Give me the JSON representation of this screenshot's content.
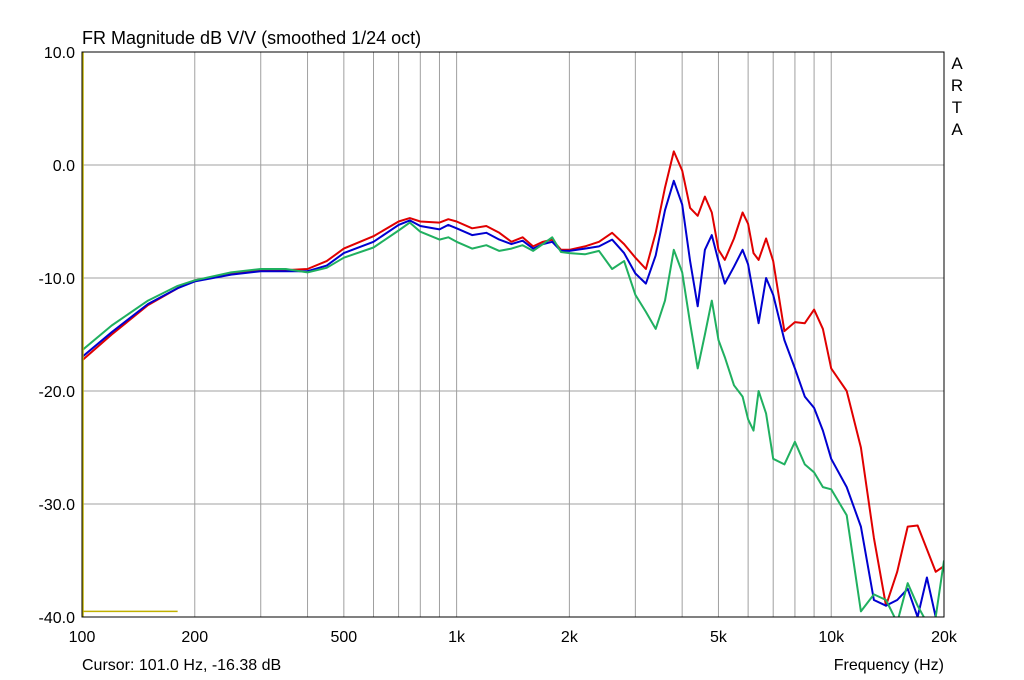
{
  "chart_data": {
    "type": "line",
    "title": "FR Magnitude dB V/V (smoothed 1/24 oct)",
    "xlabel": "Frequency (Hz)",
    "ylabel": "",
    "xscale": "log",
    "xlim": [
      100,
      20000
    ],
    "ylim": [
      -40,
      10
    ],
    "grid": true,
    "brand_letters": [
      "A",
      "R",
      "T",
      "A"
    ],
    "cursor_text": "Cursor: 101.0 Hz, -16.38 dB",
    "cursor_marker": {
      "x_start": 100,
      "x_end": 180,
      "y": -39.5
    },
    "y_ticks": [
      {
        "value": 10,
        "label": "10.0"
      },
      {
        "value": 0,
        "label": "0.0"
      },
      {
        "value": -10,
        "label": "-10.0"
      },
      {
        "value": -20,
        "label": "-20.0"
      },
      {
        "value": -30,
        "label": "-30.0"
      },
      {
        "value": -40,
        "label": "-40.0"
      }
    ],
    "x_ticks": [
      {
        "value": 100,
        "label": "100"
      },
      {
        "value": 200,
        "label": "200"
      },
      {
        "value": 500,
        "label": "500"
      },
      {
        "value": 1000,
        "label": "1k"
      },
      {
        "value": 2000,
        "label": "2k"
      },
      {
        "value": 5000,
        "label": "5k"
      },
      {
        "value": 10000,
        "label": "10k"
      },
      {
        "value": 20000,
        "label": "20k"
      }
    ],
    "x_minor_grid": [
      300,
      400,
      600,
      700,
      800,
      900,
      3000,
      4000,
      6000,
      7000,
      8000,
      9000
    ],
    "colors": {
      "red": "#e00000",
      "blue": "#0000d0",
      "green": "#20b060",
      "cursor": "#c0b000",
      "grid": "#a0a0a0"
    },
    "series": [
      {
        "color": "#e00000",
        "points": [
          [
            100,
            -17.3
          ],
          [
            120,
            -15.0
          ],
          [
            150,
            -12.4
          ],
          [
            180,
            -10.9
          ],
          [
            200,
            -10.2
          ],
          [
            250,
            -9.6
          ],
          [
            300,
            -9.3
          ],
          [
            350,
            -9.3
          ],
          [
            400,
            -9.2
          ],
          [
            450,
            -8.5
          ],
          [
            500,
            -7.4
          ],
          [
            600,
            -6.3
          ],
          [
            700,
            -5.0
          ],
          [
            750,
            -4.7
          ],
          [
            800,
            -5.0
          ],
          [
            900,
            -5.1
          ],
          [
            950,
            -4.8
          ],
          [
            1000,
            -5.0
          ],
          [
            1100,
            -5.6
          ],
          [
            1200,
            -5.4
          ],
          [
            1300,
            -6.0
          ],
          [
            1400,
            -6.8
          ],
          [
            1500,
            -6.4
          ],
          [
            1600,
            -7.2
          ],
          [
            1700,
            -6.8
          ],
          [
            1800,
            -6.6
          ],
          [
            1900,
            -7.5
          ],
          [
            2000,
            -7.5
          ],
          [
            2200,
            -7.2
          ],
          [
            2400,
            -6.8
          ],
          [
            2600,
            -6.0
          ],
          [
            2800,
            -7.0
          ],
          [
            3000,
            -8.2
          ],
          [
            3200,
            -9.2
          ],
          [
            3400,
            -6.0
          ],
          [
            3600,
            -2.0
          ],
          [
            3800,
            1.2
          ],
          [
            4000,
            -0.5
          ],
          [
            4200,
            -3.8
          ],
          [
            4400,
            -4.5
          ],
          [
            4600,
            -2.8
          ],
          [
            4800,
            -4.2
          ],
          [
            5000,
            -7.5
          ],
          [
            5200,
            -8.4
          ],
          [
            5500,
            -6.5
          ],
          [
            5800,
            -4.2
          ],
          [
            6000,
            -5.2
          ],
          [
            6200,
            -7.8
          ],
          [
            6400,
            -8.4
          ],
          [
            6700,
            -6.5
          ],
          [
            7000,
            -8.5
          ],
          [
            7500,
            -14.7
          ],
          [
            8000,
            -13.9
          ],
          [
            8500,
            -14.0
          ],
          [
            9000,
            -12.8
          ],
          [
            9500,
            -14.5
          ],
          [
            10000,
            -18.0
          ],
          [
            11000,
            -20.0
          ],
          [
            12000,
            -25.0
          ],
          [
            13000,
            -33.0
          ],
          [
            14000,
            -39.0
          ],
          [
            15000,
            -36.0
          ],
          [
            16000,
            -32.0
          ],
          [
            17000,
            -31.9
          ],
          [
            18000,
            -34.0
          ],
          [
            19000,
            -36.0
          ],
          [
            20000,
            -35.5
          ]
        ]
      },
      {
        "color": "#0000d0",
        "points": [
          [
            100,
            -17.0
          ],
          [
            120,
            -14.8
          ],
          [
            150,
            -12.3
          ],
          [
            180,
            -10.9
          ],
          [
            200,
            -10.3
          ],
          [
            250,
            -9.7
          ],
          [
            300,
            -9.4
          ],
          [
            350,
            -9.4
          ],
          [
            400,
            -9.4
          ],
          [
            450,
            -8.9
          ],
          [
            500,
            -7.8
          ],
          [
            600,
            -6.8
          ],
          [
            700,
            -5.3
          ],
          [
            750,
            -4.9
          ],
          [
            800,
            -5.4
          ],
          [
            900,
            -5.7
          ],
          [
            950,
            -5.3
          ],
          [
            1000,
            -5.6
          ],
          [
            1100,
            -6.2
          ],
          [
            1200,
            -6.0
          ],
          [
            1300,
            -6.6
          ],
          [
            1400,
            -7.0
          ],
          [
            1500,
            -6.7
          ],
          [
            1600,
            -7.4
          ],
          [
            1700,
            -7.0
          ],
          [
            1800,
            -6.8
          ],
          [
            1900,
            -7.6
          ],
          [
            2000,
            -7.6
          ],
          [
            2200,
            -7.4
          ],
          [
            2400,
            -7.2
          ],
          [
            2600,
            -6.6
          ],
          [
            2800,
            -7.8
          ],
          [
            3000,
            -9.6
          ],
          [
            3200,
            -10.5
          ],
          [
            3400,
            -8.0
          ],
          [
            3600,
            -4.0
          ],
          [
            3800,
            -1.4
          ],
          [
            4000,
            -3.5
          ],
          [
            4200,
            -8.5
          ],
          [
            4400,
            -12.5
          ],
          [
            4600,
            -7.5
          ],
          [
            4800,
            -6.2
          ],
          [
            5000,
            -8.5
          ],
          [
            5200,
            -10.5
          ],
          [
            5500,
            -9.0
          ],
          [
            5800,
            -7.5
          ],
          [
            6000,
            -8.8
          ],
          [
            6200,
            -11.5
          ],
          [
            6400,
            -14.0
          ],
          [
            6700,
            -10.0
          ],
          [
            7000,
            -11.5
          ],
          [
            7500,
            -15.5
          ],
          [
            8000,
            -18.0
          ],
          [
            8500,
            -20.5
          ],
          [
            9000,
            -21.5
          ],
          [
            9500,
            -23.5
          ],
          [
            10000,
            -26.0
          ],
          [
            11000,
            -28.5
          ],
          [
            12000,
            -32.0
          ],
          [
            13000,
            -38.5
          ],
          [
            14000,
            -39.0
          ],
          [
            15000,
            -38.5
          ],
          [
            16000,
            -37.5
          ],
          [
            17000,
            -40.0
          ],
          [
            18000,
            -36.5
          ],
          [
            19000,
            -40.0
          ],
          [
            20000,
            -40.5
          ]
        ]
      },
      {
        "color": "#20b060",
        "points": [
          [
            100,
            -16.4
          ],
          [
            120,
            -14.2
          ],
          [
            150,
            -12.0
          ],
          [
            180,
            -10.7
          ],
          [
            200,
            -10.2
          ],
          [
            250,
            -9.5
          ],
          [
            300,
            -9.2
          ],
          [
            350,
            -9.2
          ],
          [
            400,
            -9.5
          ],
          [
            450,
            -9.1
          ],
          [
            500,
            -8.2
          ],
          [
            600,
            -7.3
          ],
          [
            700,
            -5.8
          ],
          [
            750,
            -5.1
          ],
          [
            800,
            -5.9
          ],
          [
            900,
            -6.6
          ],
          [
            950,
            -6.4
          ],
          [
            1000,
            -6.8
          ],
          [
            1100,
            -7.4
          ],
          [
            1200,
            -7.1
          ],
          [
            1300,
            -7.6
          ],
          [
            1400,
            -7.4
          ],
          [
            1500,
            -7.1
          ],
          [
            1600,
            -7.6
          ],
          [
            1700,
            -7.0
          ],
          [
            1800,
            -6.4
          ],
          [
            1900,
            -7.7
          ],
          [
            2000,
            -7.8
          ],
          [
            2200,
            -7.9
          ],
          [
            2400,
            -7.6
          ],
          [
            2600,
            -9.2
          ],
          [
            2800,
            -8.5
          ],
          [
            3000,
            -11.5
          ],
          [
            3200,
            -13.0
          ],
          [
            3400,
            -14.5
          ],
          [
            3600,
            -12.0
          ],
          [
            3800,
            -7.5
          ],
          [
            4000,
            -9.5
          ],
          [
            4200,
            -14.0
          ],
          [
            4400,
            -18.0
          ],
          [
            4600,
            -15.0
          ],
          [
            4800,
            -12.0
          ],
          [
            5000,
            -15.5
          ],
          [
            5200,
            -17.0
          ],
          [
            5500,
            -19.5
          ],
          [
            5800,
            -20.5
          ],
          [
            6000,
            -22.5
          ],
          [
            6200,
            -23.5
          ],
          [
            6400,
            -20.0
          ],
          [
            6700,
            -22.0
          ],
          [
            7000,
            -26.0
          ],
          [
            7500,
            -26.5
          ],
          [
            8000,
            -24.5
          ],
          [
            8500,
            -26.5
          ],
          [
            9000,
            -27.2
          ],
          [
            9500,
            -28.5
          ],
          [
            10000,
            -28.7
          ],
          [
            11000,
            -31.0
          ],
          [
            12000,
            -39.5
          ],
          [
            13000,
            -38.0
          ],
          [
            14000,
            -38.5
          ],
          [
            15000,
            -40.5
          ],
          [
            16000,
            -37.0
          ],
          [
            17000,
            -39.0
          ],
          [
            18000,
            -40.5
          ],
          [
            19000,
            -40.0
          ],
          [
            20000,
            -35.0
          ]
        ]
      }
    ]
  }
}
